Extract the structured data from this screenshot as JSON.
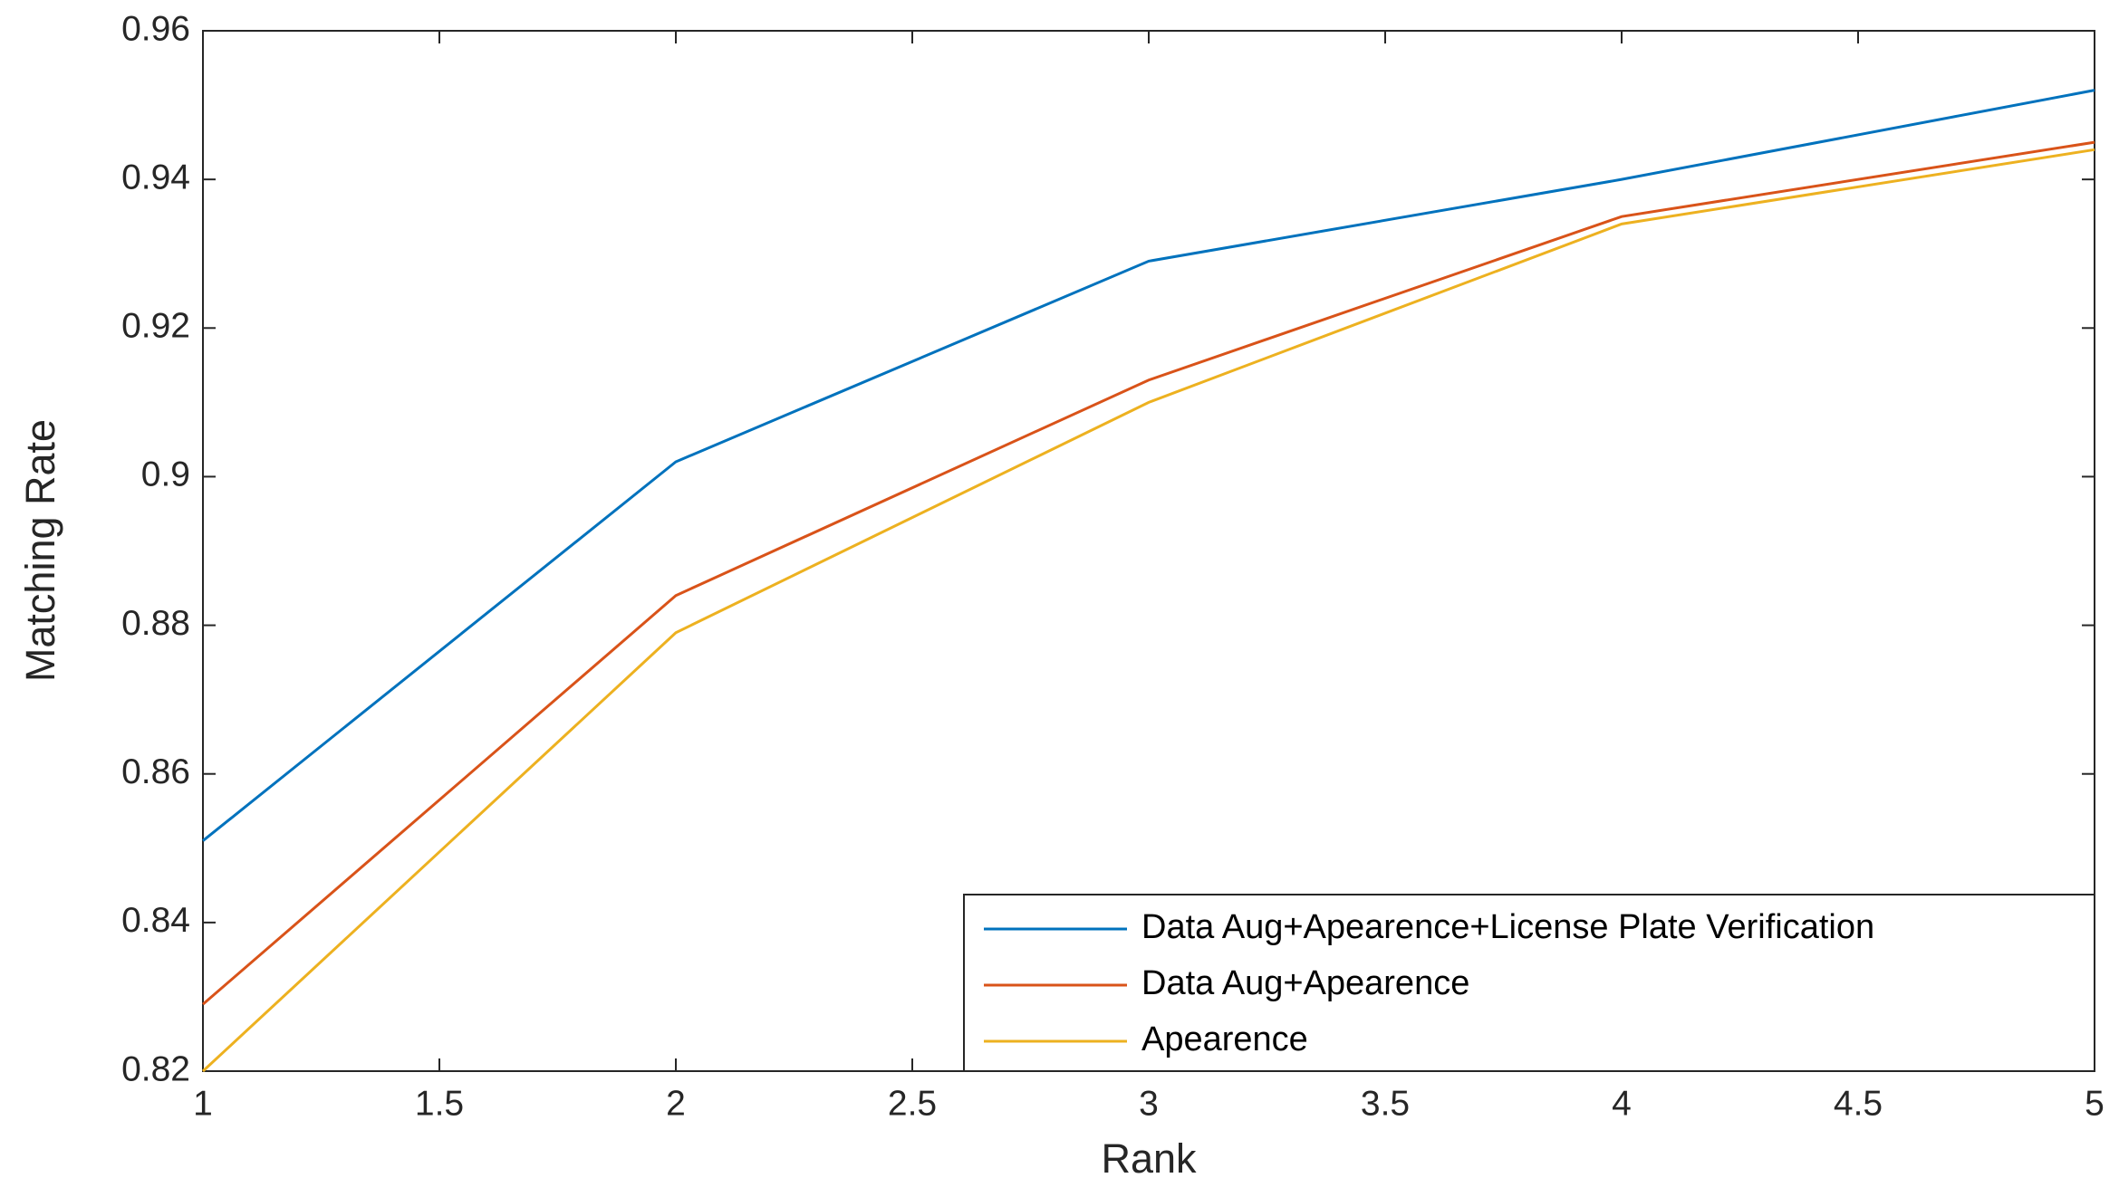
{
  "chart_data": {
    "type": "line",
    "x_label": "Rank",
    "y_label": "Matching Rate",
    "x": [
      1,
      2,
      3,
      4,
      5
    ],
    "series": [
      {
        "name": "Data Aug+Apearence+License Plate Verification",
        "color": "#0072bd",
        "values": [
          0.851,
          0.902,
          0.929,
          0.94,
          0.952
        ]
      },
      {
        "name": "Data Aug+Apearence",
        "color": "#d95319",
        "values": [
          0.829,
          0.884,
          0.913,
          0.935,
          0.945
        ]
      },
      {
        "name": "Apearence",
        "color": "#edb120",
        "values": [
          0.82,
          0.879,
          0.91,
          0.934,
          0.944
        ]
      }
    ],
    "xlim": [
      1,
      5
    ],
    "xticks": [
      1,
      1.5,
      2,
      2.5,
      3,
      3.5,
      4,
      4.5,
      5
    ],
    "ylim": [
      0.82,
      0.96
    ],
    "yticks": [
      0.82,
      0.84,
      0.86,
      0.88,
      0.9,
      0.92,
      0.94,
      0.96
    ],
    "grid": false,
    "legend": "lower right"
  }
}
